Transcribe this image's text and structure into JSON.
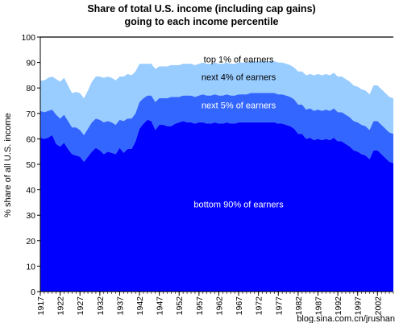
{
  "chart_data": {
    "type": "area",
    "stacked": true,
    "title": "Share of total U.S. income (including cap gains)",
    "subtitle": "going to each income percentile",
    "xlabel": "",
    "ylabel": "% share of all U.S. income",
    "ylim": [
      0,
      100
    ],
    "yticks": [
      0,
      10,
      20,
      30,
      40,
      50,
      60,
      70,
      80,
      90,
      100
    ],
    "xlim": [
      1917,
      2006
    ],
    "xticks": [
      1917,
      1922,
      1927,
      1932,
      1937,
      1942,
      1947,
      1952,
      1957,
      1962,
      1967,
      1972,
      1977,
      1982,
      1987,
      1992,
      1997,
      2002
    ],
    "xtick_labels": [
      "1917",
      "1922",
      "1927",
      "1932",
      "1937",
      "1942",
      "1947",
      "1952",
      "1957",
      "1962",
      "1967",
      "1972",
      "1977",
      "1982",
      "1987",
      "1992",
      "1997",
      "2002"
    ],
    "grid": false,
    "x": [
      1917,
      1918,
      1919,
      1920,
      1921,
      1922,
      1923,
      1924,
      1925,
      1926,
      1927,
      1928,
      1929,
      1930,
      1931,
      1932,
      1933,
      1934,
      1935,
      1936,
      1937,
      1938,
      1939,
      1940,
      1941,
      1942,
      1943,
      1944,
      1945,
      1946,
      1947,
      1948,
      1949,
      1950,
      1951,
      1952,
      1953,
      1954,
      1955,
      1956,
      1957,
      1958,
      1959,
      1960,
      1961,
      1962,
      1963,
      1964,
      1965,
      1966,
      1967,
      1968,
      1969,
      1970,
      1971,
      1972,
      1973,
      1974,
      1975,
      1976,
      1977,
      1978,
      1979,
      1980,
      1981,
      1982,
      1983,
      1984,
      1985,
      1986,
      1987,
      1988,
      1989,
      1990,
      1991,
      1992,
      1993,
      1994,
      1995,
      1996,
      1997,
      1998,
      1999,
      2000,
      2001,
      2002,
      2003,
      2004,
      2005,
      2006
    ],
    "series": [
      {
        "name": "bottom 90% of earners",
        "color": "#0000ff",
        "values": [
          60.5,
          60.0,
          60.5,
          61.5,
          58.0,
          57.0,
          58.5,
          56.0,
          54.0,
          53.5,
          53.0,
          51.0,
          53.0,
          55.0,
          56.5,
          55.5,
          54.0,
          55.0,
          54.5,
          54.0,
          56.5,
          54.5,
          56.0,
          56.0,
          59.0,
          64.0,
          66.0,
          67.5,
          67.0,
          63.5,
          65.5,
          65.5,
          65.0,
          65.0,
          66.0,
          66.5,
          67.0,
          66.5,
          66.5,
          66.0,
          66.5,
          66.5,
          66.0,
          66.0,
          66.5,
          66.0,
          66.0,
          66.5,
          66.0,
          66.0,
          66.5,
          66.5,
          66.5,
          66.5,
          66.5,
          66.5,
          66.5,
          66.5,
          66.5,
          66.5,
          66.0,
          66.0,
          65.5,
          65.0,
          64.0,
          62.0,
          62.0,
          60.0,
          60.5,
          59.5,
          60.0,
          59.5,
          60.0,
          59.5,
          60.5,
          59.0,
          59.0,
          58.0,
          57.0,
          55.5,
          55.0,
          54.0,
          53.5,
          52.0,
          55.5,
          55.5,
          54.0,
          52.5,
          51.0,
          50.5
        ]
      },
      {
        "name": "next 5% of earners",
        "color": "#3366ff",
        "values": [
          10.5,
          10.5,
          10.5,
          10.0,
          11.5,
          11.0,
          11.0,
          11.0,
          10.5,
          11.0,
          10.5,
          10.5,
          11.0,
          11.5,
          11.5,
          12.0,
          12.5,
          12.0,
          12.0,
          11.5,
          11.0,
          12.5,
          12.0,
          12.0,
          11.0,
          10.5,
          10.0,
          9.5,
          10.0,
          11.0,
          10.5,
          10.5,
          11.0,
          11.5,
          10.5,
          10.0,
          10.0,
          10.5,
          10.5,
          10.5,
          10.5,
          11.0,
          11.0,
          11.0,
          11.0,
          11.0,
          11.0,
          11.0,
          11.0,
          11.0,
          11.0,
          11.0,
          11.0,
          11.5,
          11.5,
          11.5,
          11.5,
          11.5,
          11.5,
          11.5,
          11.5,
          11.5,
          11.5,
          11.5,
          11.5,
          11.5,
          11.5,
          11.5,
          11.5,
          11.5,
          11.5,
          11.5,
          11.5,
          11.5,
          11.5,
          11.5,
          11.5,
          11.5,
          11.5,
          11.5,
          11.5,
          11.5,
          11.5,
          11.5,
          11.5,
          11.5,
          11.5,
          11.5,
          11.5,
          11.5
        ]
      },
      {
        "name": "next 4% of earners",
        "color": "#99ccff",
        "values": [
          12.0,
          12.5,
          13.0,
          13.0,
          14.0,
          14.5,
          14.5,
          14.0,
          13.5,
          14.0,
          14.5,
          14.5,
          15.0,
          16.0,
          16.5,
          17.0,
          17.5,
          17.5,
          17.5,
          17.5,
          17.0,
          17.5,
          17.5,
          17.0,
          16.5,
          15.0,
          13.5,
          12.5,
          12.5,
          13.0,
          12.5,
          12.5,
          12.5,
          12.5,
          12.5,
          12.5,
          12.5,
          12.5,
          12.5,
          12.5,
          12.5,
          12.5,
          12.5,
          12.5,
          12.5,
          12.5,
          12.5,
          12.5,
          12.5,
          12.5,
          12.5,
          12.5,
          12.5,
          12.5,
          12.5,
          12.5,
          12.5,
          12.5,
          12.5,
          12.5,
          12.5,
          12.5,
          12.5,
          12.5,
          12.5,
          13.0,
          13.0,
          13.5,
          13.5,
          14.0,
          14.0,
          14.0,
          14.0,
          14.0,
          14.0,
          14.0,
          14.0,
          14.0,
          14.0,
          14.0,
          14.0,
          14.0,
          14.0,
          14.0,
          14.0,
          14.0,
          14.0,
          14.0,
          14.0,
          14.0
        ]
      },
      {
        "name": "top 1% of earners",
        "color": "#ffffff",
        "values": [
          17.0,
          17.0,
          16.0,
          15.5,
          16.5,
          17.5,
          16.0,
          19.0,
          22.0,
          21.5,
          22.0,
          24.0,
          21.0,
          17.5,
          15.5,
          15.5,
          16.0,
          15.5,
          16.0,
          17.0,
          15.5,
          15.5,
          14.5,
          15.0,
          13.5,
          10.5,
          10.5,
          10.5,
          10.5,
          12.5,
          11.5,
          11.5,
          11.5,
          11.0,
          11.0,
          11.0,
          10.5,
          10.5,
          10.5,
          11.0,
          10.5,
          10.0,
          10.5,
          10.5,
          10.0,
          10.5,
          10.5,
          10.0,
          10.5,
          10.5,
          10.0,
          10.0,
          10.0,
          9.5,
          9.5,
          9.5,
          9.5,
          9.5,
          9.5,
          9.5,
          10.0,
          10.0,
          10.5,
          11.0,
          12.0,
          13.5,
          13.5,
          15.0,
          14.5,
          15.0,
          14.5,
          15.0,
          14.5,
          15.0,
          14.0,
          15.5,
          15.5,
          16.5,
          17.5,
          19.0,
          19.5,
          20.5,
          21.0,
          22.5,
          19.0,
          19.0,
          20.5,
          22.0,
          23.5,
          24.0
        ]
      }
    ],
    "annotations": [
      "top 1% of earners",
      "next 4% of earners",
      "next 5% of earners",
      "bottom 90% of earners"
    ],
    "watermark": "blog.sina.com.cn/jrushan"
  }
}
